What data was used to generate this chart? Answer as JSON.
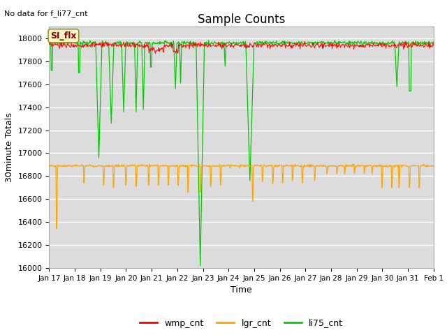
{
  "title": "Sample Counts",
  "top_left_text": "No data for f_li77_cnt",
  "xlabel": "Time",
  "ylabel": "30minute Totals",
  "ylim": [
    16000,
    18100
  ],
  "yticks": [
    16000,
    16200,
    16400,
    16600,
    16800,
    17000,
    17200,
    17400,
    17600,
    17800,
    18000
  ],
  "xtick_labels": [
    "Jan 17",
    "Jan 18",
    "Jan 19",
    "Jan 20",
    "Jan 21",
    "Jan 22",
    "Jan 23",
    "Jan 24",
    "Jan 25",
    "Jan 26",
    "Jan 27",
    "Jan 28",
    "Jan 29",
    "Jan 30",
    "Jan 31",
    "Feb 1"
  ],
  "annotation_text": "SI_flx",
  "wmp_color": "#ff0000",
  "lgr_color": "#ffa500",
  "li75_color": "#00cc00",
  "bg_color": "#dcdcdc",
  "grid_color": "#ffffff",
  "wmp_base": 17940,
  "lgr_base": 16890,
  "li75_base": 17960,
  "n_days": 15.5
}
